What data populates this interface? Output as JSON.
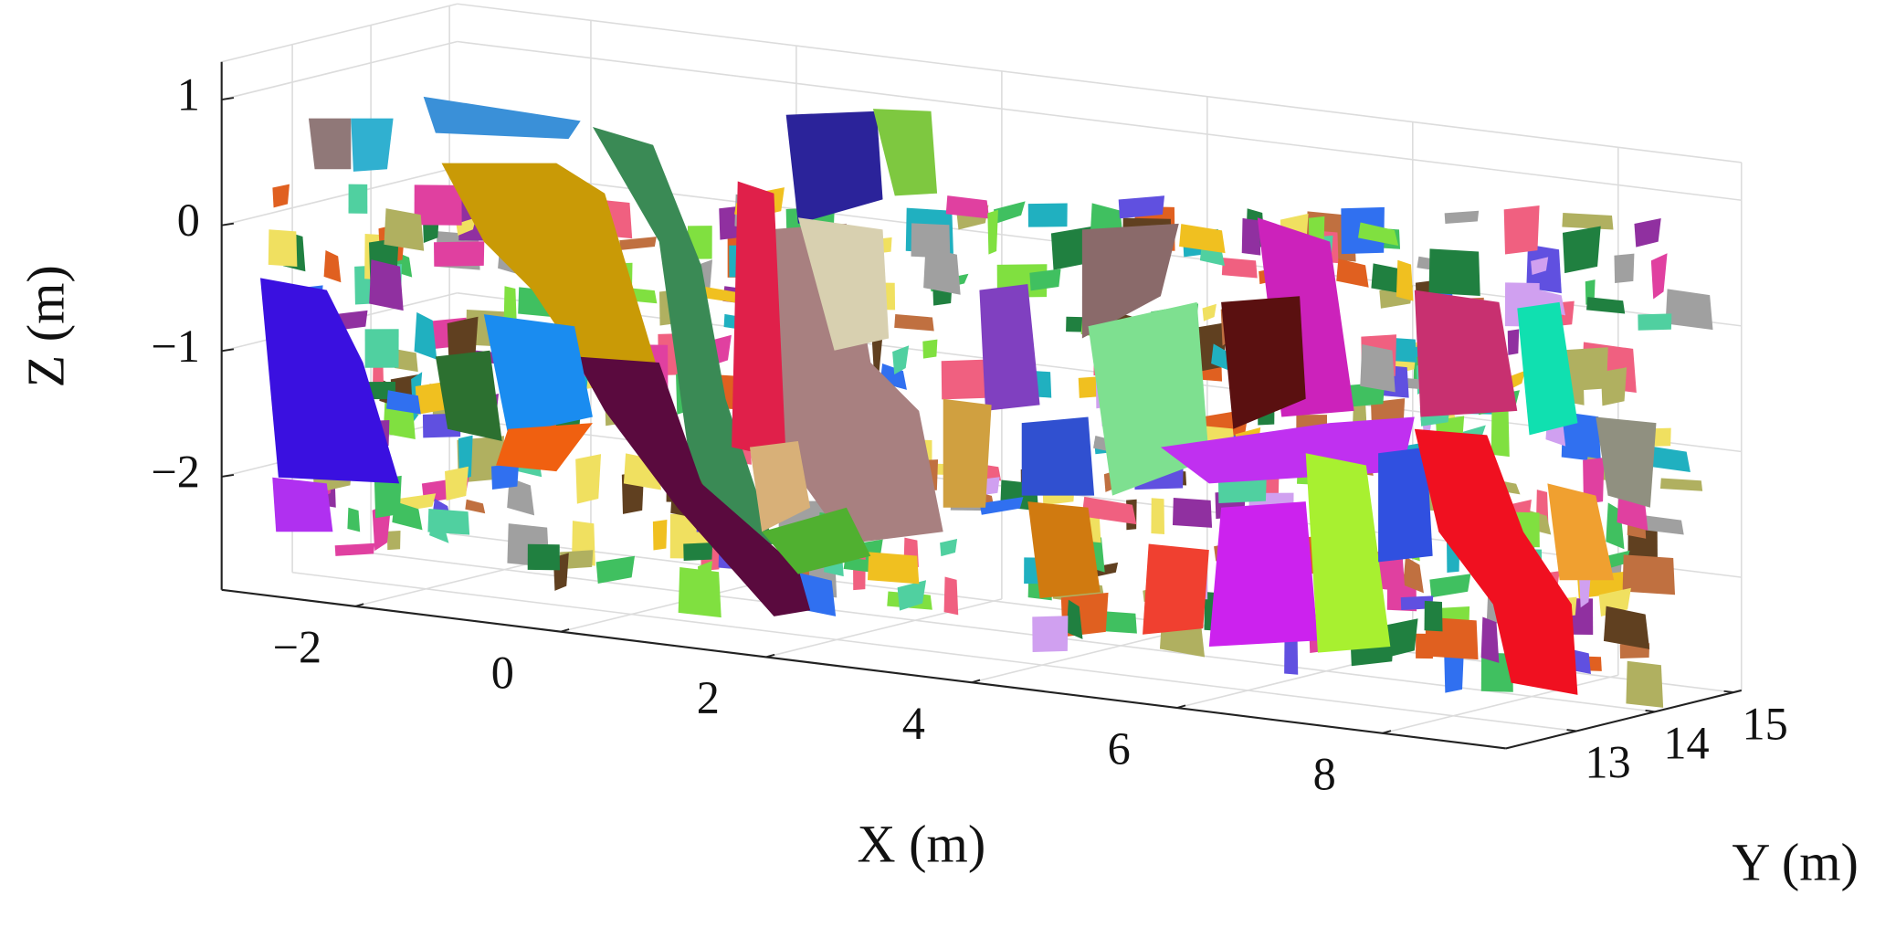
{
  "chart_data": {
    "type": "scatter3d",
    "xlabel": "X (m)",
    "ylabel": "Y (m)",
    "zlabel": "Z (m)",
    "xlim": [
      -3.3,
      9.2
    ],
    "ylim": [
      12.1,
      15.1
    ],
    "zlim": [
      -2.9,
      1.3
    ],
    "xticks": [
      {
        "value": -2,
        "label": "−2"
      },
      0,
      2,
      4,
      6,
      8
    ],
    "yticks": [
      13,
      14,
      15
    ],
    "zticks": [
      {
        "value": -2,
        "label": "−2"
      },
      {
        "value": -1,
        "label": "−1"
      },
      0,
      1
    ],
    "grid": true
  }
}
